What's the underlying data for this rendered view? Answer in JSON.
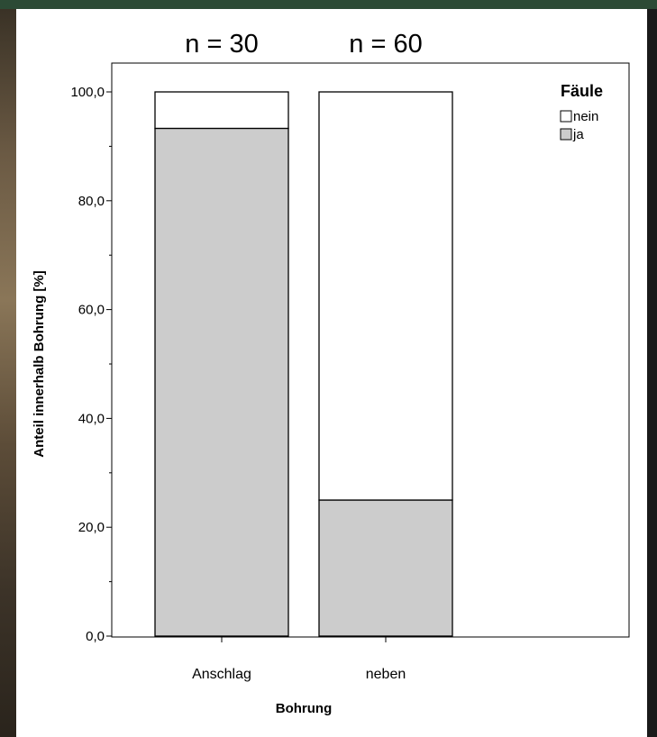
{
  "chart_data": {
    "type": "bar",
    "stacked": true,
    "categories": [
      "Anschlag",
      "neben"
    ],
    "series": [
      {
        "name": "ja",
        "values": [
          93.3,
          25.0
        ],
        "color": "#cccccc"
      },
      {
        "name": "nein",
        "values": [
          6.7,
          75.0
        ],
        "color": "#ffffff"
      }
    ],
    "sample_sizes": [
      "n = 30",
      "n = 60"
    ],
    "xlabel": "Bohrung",
    "ylabel": "Anteil innerhalb Bohrung [%]",
    "ylim": [
      0,
      100
    ],
    "yticks": [
      0,
      20,
      40,
      60,
      80,
      100
    ],
    "ytick_labels": [
      "0,0",
      "20,0",
      "40,0",
      "60,0",
      "80,0",
      "100,0"
    ],
    "legend": {
      "title": "Fäule",
      "position": "top-right",
      "entries": [
        {
          "label": "nein",
          "color": "#ffffff"
        },
        {
          "label": "ja",
          "color": "#cccccc"
        }
      ]
    },
    "grid": false
  }
}
